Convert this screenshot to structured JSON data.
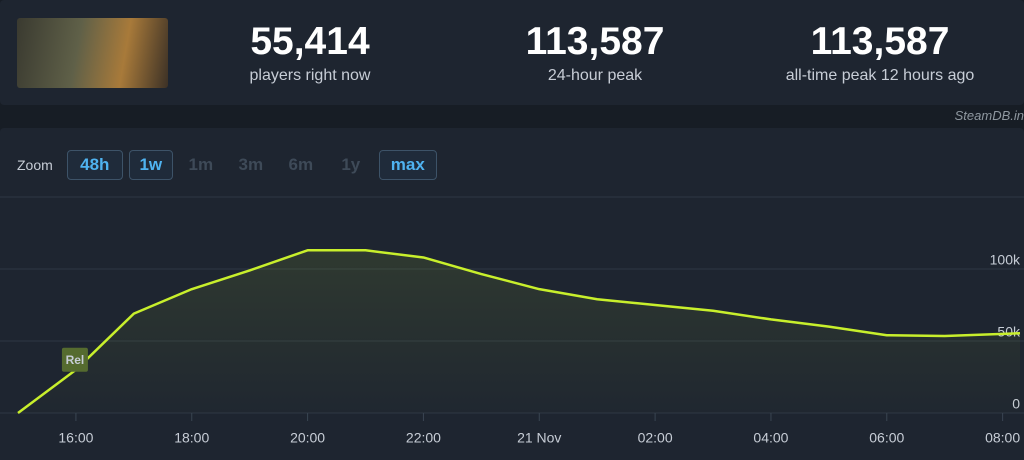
{
  "header": {
    "stats": [
      {
        "value": "55,414",
        "label": "players right now"
      },
      {
        "value": "113,587",
        "label": "24-hour peak"
      },
      {
        "value": "113,587",
        "label": "all-time peak 12 hours ago"
      }
    ]
  },
  "credit": "SteamDB.in",
  "zoom": {
    "label": "Zoom",
    "buttons": [
      {
        "label": "48h",
        "state": "active"
      },
      {
        "label": "1w",
        "state": "active"
      },
      {
        "label": "1m",
        "state": "disabled"
      },
      {
        "label": "3m",
        "state": "disabled"
      },
      {
        "label": "6m",
        "state": "disabled"
      },
      {
        "label": "1y",
        "state": "disabled"
      },
      {
        "label": "max",
        "state": "active"
      }
    ]
  },
  "chart_data": {
    "type": "line",
    "x": [
      15,
      16,
      17,
      18,
      19,
      20,
      21,
      22,
      23,
      24,
      25,
      26,
      27,
      28,
      29,
      30,
      31,
      32.3
    ],
    "values": [
      0,
      30000,
      69000,
      86000,
      99000,
      113000,
      113000,
      108000,
      96500,
      86000,
      79000,
      75000,
      71000,
      65000,
      60000,
      54000,
      53500,
      55414
    ],
    "color": "#c8ef2c",
    "xlim": [
      15,
      32.3
    ],
    "xticks": [
      {
        "value": 16,
        "label": "16:00"
      },
      {
        "value": 18,
        "label": "18:00"
      },
      {
        "value": 20,
        "label": "20:00"
      },
      {
        "value": 22,
        "label": "22:00"
      },
      {
        "value": 24,
        "label": "21 Nov"
      },
      {
        "value": 26,
        "label": "02:00"
      },
      {
        "value": 28,
        "label": "04:00"
      },
      {
        "value": 30,
        "label": "06:00"
      },
      {
        "value": 32,
        "label": "08:00"
      }
    ],
    "ylim": [
      0,
      150000
    ],
    "yticks": [
      0,
      {
        "value": 50000,
        "label": "50k"
      },
      {
        "value": 100000,
        "label": "100k"
      }
    ],
    "grid": true,
    "annotations": [
      {
        "text": "Rel",
        "x": 16,
        "y": 37000
      }
    ]
  }
}
